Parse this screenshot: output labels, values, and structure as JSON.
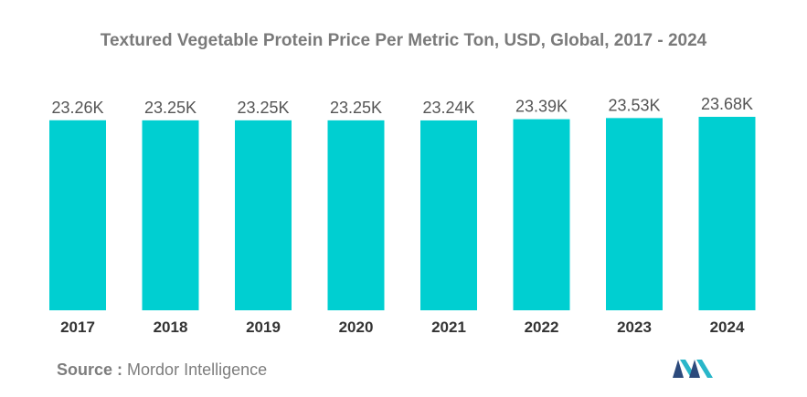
{
  "chart_data": {
    "type": "bar",
    "title": "Textured Vegetable Protein Price Per Metric Ton, USD, Global, 2017 - 2024",
    "categories": [
      "2017",
      "2018",
      "2019",
      "2020",
      "2021",
      "2022",
      "2023",
      "2024"
    ],
    "values": [
      23260,
      23250,
      23250,
      23250,
      23240,
      23390,
      23530,
      23680
    ],
    "data_labels": [
      "23.26K",
      "23.25K",
      "23.25K",
      "23.25K",
      "23.24K",
      "23.39K",
      "23.53K",
      "23.68K"
    ],
    "xlabel": "",
    "ylabel": "",
    "ylim": [
      0,
      23680
    ],
    "grid": false,
    "legend": "none",
    "bar_color": "#00cfd1"
  },
  "source": {
    "label": "Source :",
    "text": "Mordor Intelligence"
  },
  "logo": {
    "icon": "mordor-intelligence-logo-icon",
    "colors": [
      "#2c4a7c",
      "#29b6c9"
    ]
  },
  "colors": {
    "title": "#7a7a7a",
    "data_label": "#555555",
    "category_label": "#333333",
    "source": "#7d7d7d"
  }
}
